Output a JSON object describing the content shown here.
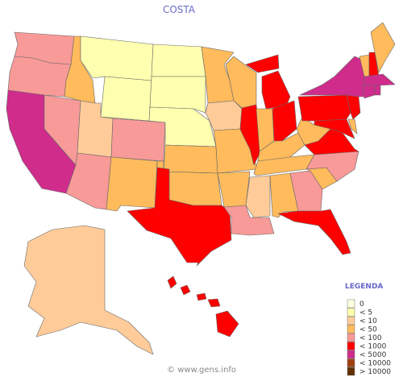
{
  "title": "COSTA",
  "legend": {
    "title": "LEGENDA",
    "items": [
      {
        "label": "0",
        "color": "#ffffe0"
      },
      {
        "label": "< 5",
        "color": "#ffffb0"
      },
      {
        "label": "< 10",
        "color": "#ffcc99"
      },
      {
        "label": "< 50",
        "color": "#ffbb5c"
      },
      {
        "label": "< 100",
        "color": "#f89a98"
      },
      {
        "label": "< 1000",
        "color": "#ff0000"
      },
      {
        "label": "< 5000",
        "color": "#d02c8c"
      },
      {
        "label": "< 10000",
        "color": "#a04010"
      },
      {
        "label": "> 10000",
        "color": "#603000"
      }
    ]
  },
  "footer": "© www.gens.info"
}
